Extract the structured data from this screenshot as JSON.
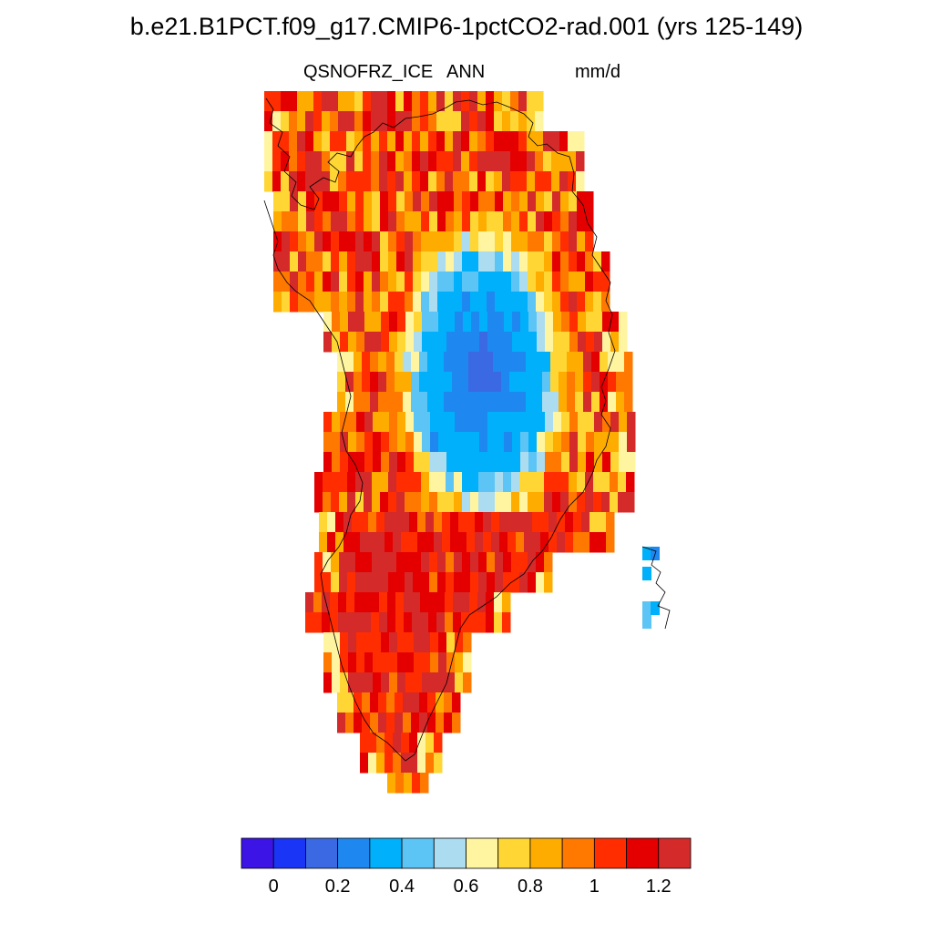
{
  "title": "b.e21.B1PCT.f09_g17.CMIP6-1pctCO2-rad.001 (yrs 125-149)",
  "variable": "QSNOFRZ_ICE",
  "season": "ANN",
  "units": "mm/d",
  "colorbar": {
    "colors": [
      "#3d14e6",
      "#1a35f5",
      "#3a69e3",
      "#1e88f0",
      "#00b0fa",
      "#5dc5f5",
      "#acdcf0",
      "#fff5a0",
      "#ffd634",
      "#ffac00",
      "#ff7800",
      "#ff2d00",
      "#e40000",
      "#d42a2a"
    ],
    "tick_labels": [
      "0",
      "0.2",
      "0.4",
      "0.6",
      "0.8",
      "1",
      "1.2"
    ]
  },
  "map_data": {
    "type": "heatmap",
    "region": "Greenland",
    "color_levels_description": "ice sheet interior low values (blue, ~0.1-0.5 mm/d), margins high values (red, ~1.1-1.3 mm/d)"
  }
}
